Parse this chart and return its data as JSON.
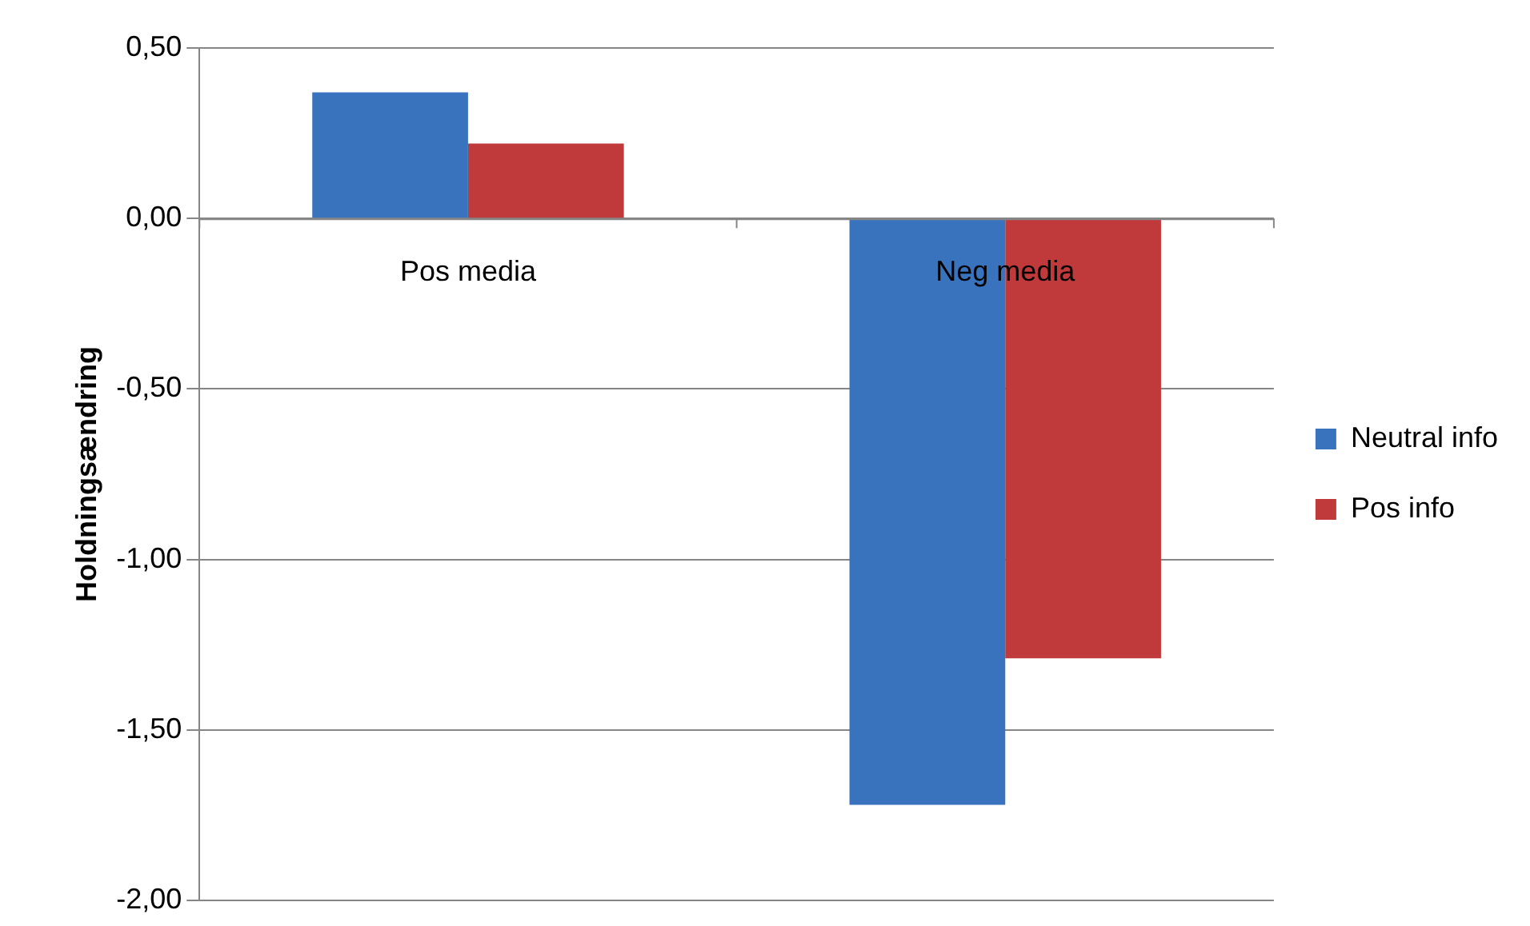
{
  "chart_data": {
    "type": "bar",
    "ylabel": "Holdningsændring",
    "categories": [
      "Pos media",
      "Neg media"
    ],
    "series": [
      {
        "name": "Neutral info",
        "color": "#3a73bd",
        "values": [
          0.37,
          -1.72
        ]
      },
      {
        "name": "Pos info",
        "color": "#c0393b",
        "values": [
          0.22,
          -1.29
        ]
      }
    ],
    "ylim": [
      -2,
      0.5
    ],
    "yticks": [
      {
        "value": 0.5,
        "label": "0,50"
      },
      {
        "value": 0,
        "label": "0,00"
      },
      {
        "value": -0.5,
        "label": "-0,50"
      },
      {
        "value": -1,
        "label": "-1,00"
      },
      {
        "value": -1.5,
        "label": "-1,50"
      },
      {
        "value": -2,
        "label": "-2,00"
      }
    ],
    "grid": "y",
    "legend": "right"
  }
}
